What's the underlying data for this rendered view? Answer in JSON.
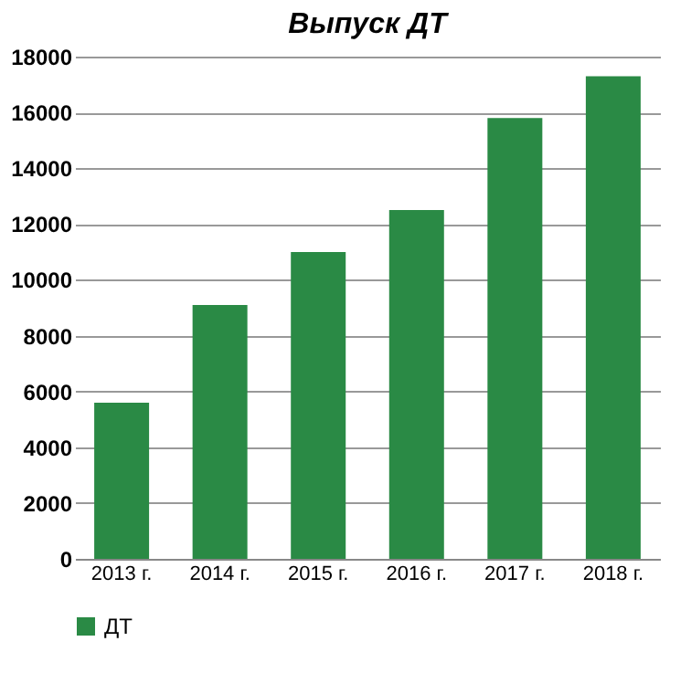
{
  "chart_data": {
    "type": "bar",
    "title": "Выпуск ДТ",
    "categories": [
      "2013 г.",
      "2014 г.",
      "2015 г.",
      "2016 г.",
      "2017 г.",
      "2018 г."
    ],
    "series": [
      {
        "name": "ДТ",
        "color": "#2a8a45",
        "values": [
          5600,
          9100,
          11000,
          12500,
          15800,
          17300
        ]
      }
    ],
    "ylim": [
      0,
      18000
    ],
    "yticks": [
      0,
      2000,
      4000,
      6000,
      8000,
      10000,
      12000,
      14000,
      16000,
      18000
    ],
    "grid": "y",
    "legend": "bottom left"
  }
}
